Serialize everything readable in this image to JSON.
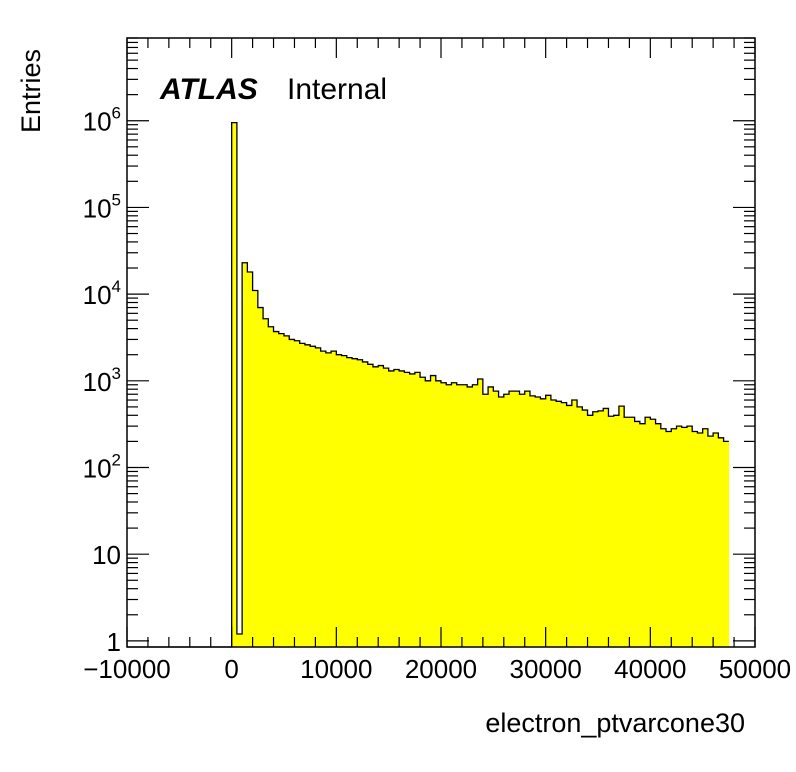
{
  "chart_data": {
    "type": "bar",
    "title": "",
    "xlabel": "electron_ptvarcone30",
    "ylabel": "Entries",
    "xlim": [
      -10000,
      50000
    ],
    "ylim": [
      0.85,
      9000000
    ],
    "y_scale": "log",
    "grid": false,
    "legend": "none",
    "atlas_label": "ATLAS",
    "atlas_status": "Internal",
    "bin_width": 500,
    "x_start": -10000,
    "x_ticks": [
      {
        "value": -10000,
        "label": "−10000"
      },
      {
        "value": 0,
        "label": "0"
      },
      {
        "value": 10000,
        "label": "10000"
      },
      {
        "value": 20000,
        "label": "20000"
      },
      {
        "value": 30000,
        "label": "30000"
      },
      {
        "value": 40000,
        "label": "40000"
      },
      {
        "value": 50000,
        "label": "50000"
      }
    ],
    "y_ticks": [
      {
        "value": 1,
        "base": "1",
        "exp": ""
      },
      {
        "value": 10,
        "base": "10",
        "exp": ""
      },
      {
        "value": 100,
        "base": "10",
        "exp": "2"
      },
      {
        "value": 1000,
        "base": "10",
        "exp": "3"
      },
      {
        "value": 10000,
        "base": "10",
        "exp": "4"
      },
      {
        "value": 100000,
        "base": "10",
        "exp": "5"
      },
      {
        "value": 1000000,
        "base": "10",
        "exp": "6"
      }
    ],
    "fill_color": "#ffff00",
    "line_color": "#000000",
    "values": [
      0,
      0,
      0,
      0,
      0,
      0,
      0,
      0,
      0,
      0,
      0,
      0,
      0,
      0,
      0,
      0,
      0,
      0,
      0,
      0,
      950000,
      1.2,
      23000,
      18000,
      11000,
      7000,
      5200,
      4200,
      3700,
      3500,
      3300,
      3000,
      2900,
      2700,
      2600,
      2500,
      2400,
      2200,
      2100,
      2200,
      2000,
      1950,
      1850,
      1800,
      1750,
      1650,
      1550,
      1450,
      1500,
      1400,
      1300,
      1350,
      1300,
      1250,
      1200,
      1250,
      1100,
      1000,
      1150,
      1000,
      950,
      900,
      950,
      900,
      900,
      850,
      900,
      1050,
      700,
      850,
      760,
      650,
      700,
      760,
      760,
      700,
      760,
      670,
      650,
      620,
      680,
      600,
      580,
      560,
      520,
      600,
      500,
      460,
      400,
      440,
      450,
      480,
      390,
      400,
      510,
      380,
      380,
      340,
      320,
      380,
      360,
      320,
      280,
      260,
      280,
      300,
      290,
      300,
      260,
      250,
      280,
      230,
      250,
      220,
      200
    ]
  }
}
